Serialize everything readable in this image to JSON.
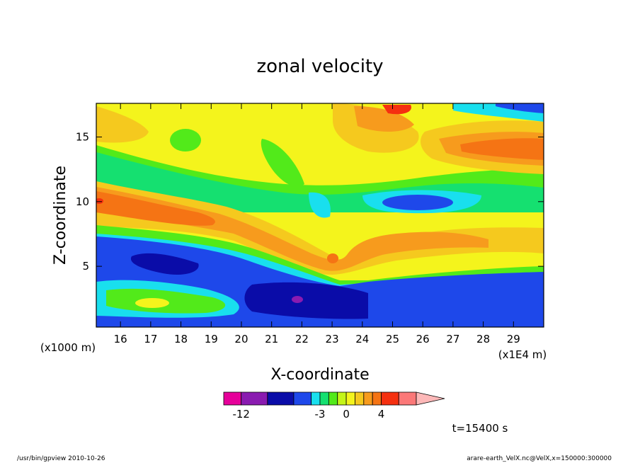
{
  "chart_data": {
    "type": "heatmap",
    "title": "zonal velocity",
    "xlabel": "X-coordinate",
    "ylabel": "Z-coordinate",
    "x_unit_label": "(x1E4 m)",
    "y_unit_label": "(x1000 m)",
    "xlim": [
      15.2,
      30.0
    ],
    "ylim": [
      0.3,
      17.6
    ],
    "x_ticks": [
      "16",
      "17",
      "18",
      "19",
      "20",
      "21",
      "22",
      "23",
      "24",
      "25",
      "26",
      "27",
      "28",
      "29"
    ],
    "y_ticks": [
      "5",
      "10",
      "15"
    ],
    "x_tick_values": [
      16,
      17,
      18,
      19,
      20,
      21,
      22,
      23,
      24,
      25,
      26,
      27,
      28,
      29
    ],
    "y_tick_values": [
      5,
      10,
      15
    ],
    "colorbar": {
      "tick_labels": [
        "-12",
        "-3",
        "0",
        "4"
      ],
      "levels": [
        -14,
        -12,
        -9,
        -6,
        -4,
        -3,
        -2,
        -1,
        0,
        1,
        2,
        3,
        4,
        6,
        8
      ],
      "colors": [
        "#e6009a",
        "#8a1bb0",
        "#0a0ca8",
        "#1e48ea",
        "#19dfee",
        "#15e070",
        "#52ea1a",
        "#c4f518",
        "#f4f41c",
        "#f5c91e",
        "#f79b1d",
        "#f57414",
        "#f53010",
        "#fb7878",
        "#fdb8b8"
      ]
    },
    "annotations": {
      "time": "t=15400 s",
      "footer_left": "/usr/bin/gpview  2010-10-26",
      "footer_right": "arare-earth_VelX.nc@VelX,x=150000:300000"
    },
    "notes": "Zonal velocity field: strong negative (westward, blue) flow below ~6 km with a minimum near x=21-23 (x1E4 m), z~2-3 km; positive (eastward, orange/red) jet sloping from z~10 km at left down to ~5 km near x=23; positive core near x=28, z~14 km."
  }
}
